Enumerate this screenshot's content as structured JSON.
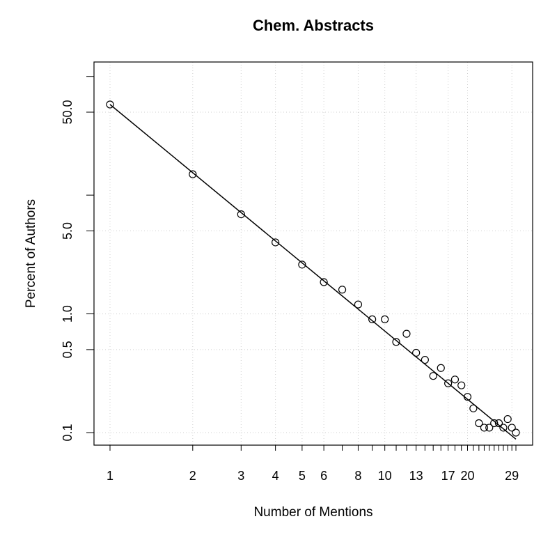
{
  "chart_data": {
    "type": "scatter",
    "title": "Chem. Abstracts",
    "xlabel": "Number of Mentions",
    "ylabel": "Percent of Authors",
    "x_scale": "log",
    "y_scale": "log",
    "xlim": [
      1,
      30
    ],
    "ylim": [
      0.08,
      120
    ],
    "grid": true,
    "x_tick_labels": [
      "1",
      "2",
      "3",
      "4",
      "5",
      "6",
      "8",
      "10",
      "13",
      "17",
      "20",
      "29"
    ],
    "y_tick_labels": [
      "0.1",
      "0.5",
      "1.0",
      "5.0",
      "50.0"
    ],
    "series": [
      {
        "marker": "open-circle",
        "x": [
          1,
          2,
          3,
          4,
          5,
          6,
          7,
          8,
          9,
          10,
          11,
          12,
          13,
          14,
          15,
          16,
          17,
          18,
          19,
          20,
          21,
          22,
          23,
          24,
          25,
          26,
          27,
          28,
          29,
          30
        ],
        "y": [
          58,
          15,
          6.9,
          4.0,
          2.6,
          1.85,
          1.6,
          1.2,
          0.9,
          0.9,
          0.58,
          0.68,
          0.47,
          0.41,
          0.3,
          0.35,
          0.26,
          0.28,
          0.25,
          0.2,
          0.16,
          0.12,
          0.11,
          0.11,
          0.12,
          0.12,
          0.11,
          0.13,
          0.11,
          0.1
        ]
      }
    ],
    "fit_line": {
      "style": "solid",
      "x": [
        1,
        30
      ],
      "y": [
        58,
        0.088
      ]
    }
  }
}
